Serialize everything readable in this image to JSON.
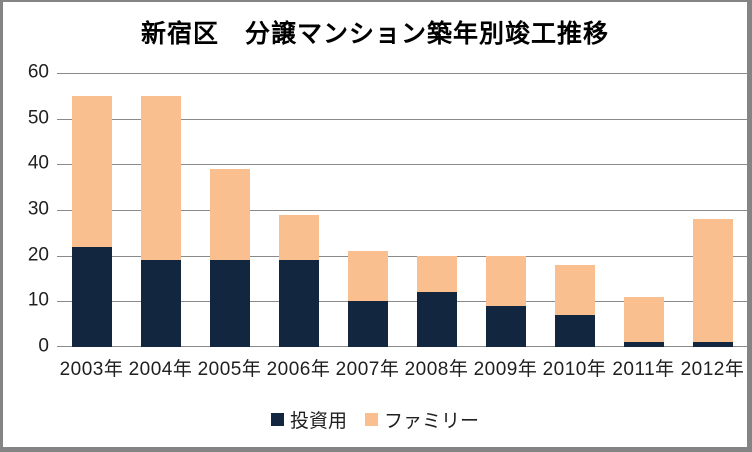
{
  "chart_data": {
    "type": "bar",
    "stacked": true,
    "title": "新宿区　分譲マンション築年別竣工推移",
    "categories": [
      "2003年",
      "2004年",
      "2005年",
      "2006年",
      "2007年",
      "2008年",
      "2009年",
      "2010年",
      "2011年",
      "2012年"
    ],
    "series": [
      {
        "id": "investment",
        "name": "投資用",
        "color": "#13263F",
        "values": [
          22,
          19,
          19,
          19,
          10,
          12,
          9,
          7,
          1,
          1
        ]
      },
      {
        "id": "family",
        "name": "ファミリー",
        "color": "#FABF8E",
        "values": [
          33,
          36,
          20,
          10,
          11,
          8,
          11,
          11,
          10,
          27
        ]
      }
    ],
    "totals": [
      55,
      55,
      39,
      29,
      21,
      20,
      20,
      18,
      11,
      28
    ],
    "xlabel": "",
    "ylabel": "",
    "ylim": [
      0,
      60
    ],
    "yticks": [
      60,
      50,
      40,
      30,
      20,
      10,
      0
    ],
    "grid": true,
    "gridline_color": "#8A8A8A",
    "legend_position": "bottom"
  }
}
